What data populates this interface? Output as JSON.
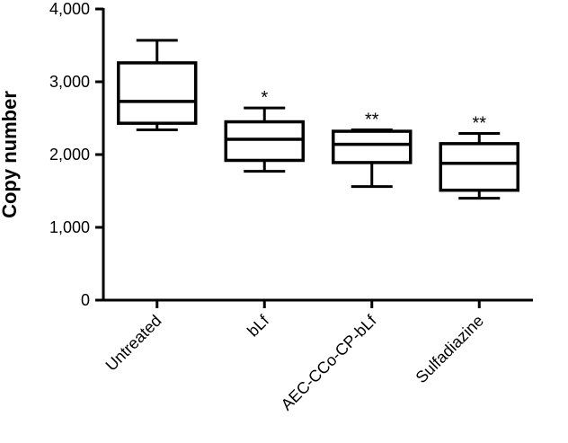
{
  "chart_data": {
    "type": "box",
    "title": "",
    "xlabel": "",
    "ylabel": "Copy number",
    "ylim": [
      0,
      4000
    ],
    "yticks": [
      0,
      1000,
      2000,
      3000,
      4000
    ],
    "ytick_labels": [
      "0",
      "1,000",
      "2,000",
      "3,000",
      "4,000"
    ],
    "grid": false,
    "categories": [
      "Untreated",
      "bLf",
      "AEC-CCo-CP-bLf",
      "Sulfadiazine"
    ],
    "boxes": [
      {
        "category": "Untreated",
        "min": 2340,
        "q1": 2430,
        "median": 2730,
        "q3": 3260,
        "max": 3570,
        "annotation": ""
      },
      {
        "category": "bLf",
        "min": 1770,
        "q1": 1920,
        "median": 2210,
        "q3": 2450,
        "max": 2640,
        "annotation": "*"
      },
      {
        "category": "AEC-CCo-CP-bLf",
        "min": 1560,
        "q1": 1890,
        "median": 2140,
        "q3": 2320,
        "max": 2340,
        "annotation": "**"
      },
      {
        "category": "Sulfadiazine",
        "min": 1400,
        "q1": 1510,
        "median": 1880,
        "q3": 2150,
        "max": 2290,
        "annotation": "**"
      }
    ],
    "colors": {
      "stroke": "#000000",
      "fill": "#ffffff"
    }
  }
}
